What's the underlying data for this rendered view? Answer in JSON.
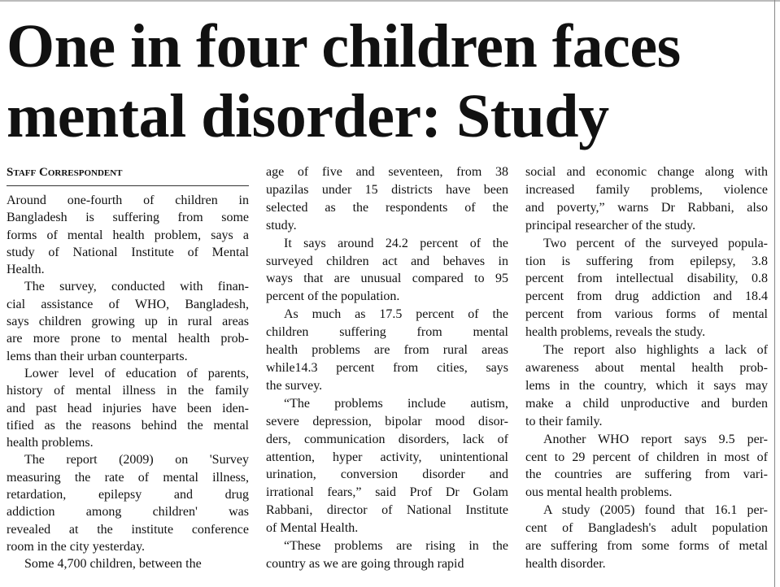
{
  "headline": [
    "One in four children faces",
    "mental disorder: Study"
  ],
  "byline": "Staff Correspondent",
  "columns": [
    [
      [
        "Around one-fourth of children in",
        "Bangladesh is suffering from some",
        "forms of mental health problem, says a",
        "study of National Institute of Mental",
        "Health."
      ],
      [
        "The survey, conducted with finan-",
        "cial assistance of WHO, Bangladesh,",
        "says children growing up in rural areas",
        "are more prone to mental health prob-",
        "lems than their urban counterparts."
      ],
      [
        "Lower level of education of parents,",
        "history of mental illness in the family",
        "and past head injuries have been iden-",
        "tified as the reasons behind the mental",
        "health problems."
      ],
      [
        "The report (2009) on 'Survey",
        "measuring the rate of mental illness,",
        "retardation, epilepsy and drug",
        "addiction among children' was",
        "revealed at the institute conference",
        "room in the city yesterday."
      ],
      [
        "Some 4,700 children, between the"
      ]
    ],
    [
      [
        "age of five and seventeen, from 38",
        "upazilas under 15 districts have been",
        "selected as the respondents of the",
        "study."
      ],
      [
        "It says around 24.2 percent of the",
        "surveyed children act and behaves in",
        "ways that are unusual compared to 95",
        "percent of the population."
      ],
      [
        "As much as 17.5 percent of the",
        "children suffering from mental",
        "health problems are from rural areas",
        "while14.3 percent from cities, says",
        "the survey."
      ],
      [
        "“The problems include autism,",
        "severe depression, bipolar mood disor-",
        "ders, communication disorders, lack of",
        "attention, hyper activity, unintentional",
        "urination, conversion disorder and",
        "irrational fears,” said Prof Dr Golam",
        "Rabbani, director of National Institute",
        "of Mental Health."
      ],
      [
        "“These problems are rising in the",
        "country as we are going through rapid"
      ]
    ],
    [
      [
        "social and economic change along with",
        "increased family problems, violence",
        "and poverty,” warns Dr Rabbani, also",
        "principal researcher of the study."
      ],
      [
        "Two percent of the surveyed popula-",
        "tion is suffering from epilepsy, 3.8",
        "percent from intellectual disability, 0.8",
        "percent from drug addiction and 18.4",
        "percent from various forms of mental",
        "health problems, reveals the study."
      ],
      [
        "The report also highlights a lack of",
        "awareness about mental health prob-",
        "lems in the country, which it says may",
        "make a child unproductive and burden",
        "to their family."
      ],
      [
        "Another WHO report says 9.5 per-",
        "cent to 29 percent of children in most of",
        "the countries are suffering from vari-",
        "ous mental health problems."
      ],
      [
        "A study (2005) found that 16.1 per-",
        "cent of Bangladesh's adult population",
        "are suffering from some forms of metal",
        "health disorder."
      ]
    ]
  ]
}
